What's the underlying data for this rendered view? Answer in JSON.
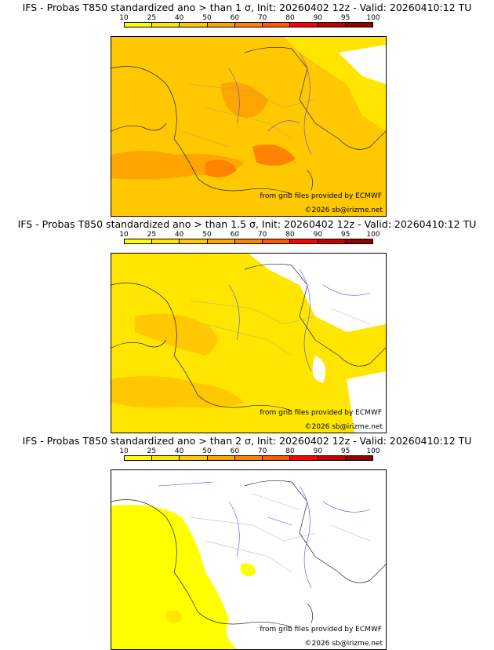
{
  "panels": [
    {
      "title": "IFS - Probas T850  standardized ano > than 1 σ, Init: 20260402 12z - Valid: 20260410:12 TU"
    },
    {
      "title": "IFS - Probas T850  standardized ano > than 1.5 σ, Init: 20260402 12z - Valid: 20260410:12 TU"
    },
    {
      "title": "IFS - Probas T850  standardized ano > than 2 σ, Init: 20260402 12z - Valid: 20260410:12 TU"
    }
  ],
  "scale": {
    "labels": [
      "10",
      "25",
      "40",
      "50",
      "60",
      "70",
      "80",
      "90",
      "95",
      "100"
    ],
    "colors": [
      "#ffff00",
      "#ffe600",
      "#ffc800",
      "#ffa500",
      "#ff8200",
      "#ff5a00",
      "#ff0000",
      "#c80000",
      "#960000"
    ]
  },
  "credits": {
    "source": "from grib files provided by ECMWF",
    "copyright": "©2026 sb@irizme.net"
  }
}
